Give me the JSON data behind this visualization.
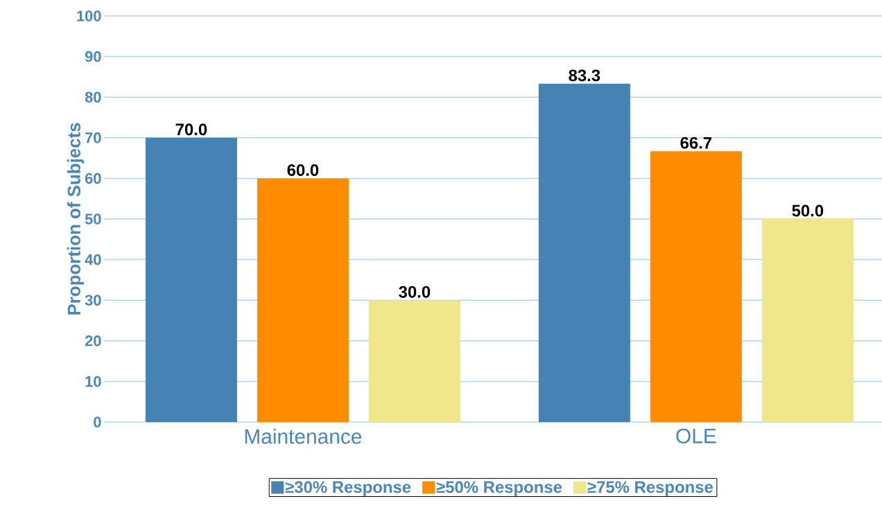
{
  "chart_data": {
    "type": "bar",
    "ylabel": "Proportion of Subjects",
    "categories": [
      "Maintenance",
      "OLE"
    ],
    "series": [
      {
        "name": "≥30% Response",
        "color": "#4682b4",
        "values": [
          70.0,
          83.3
        ],
        "value_labels": [
          "70.0",
          "83.3"
        ]
      },
      {
        "name": "≥50% Response",
        "color": "#ff8c00",
        "values": [
          60.0,
          66.7
        ],
        "value_labels": [
          "60.0",
          "66.7"
        ]
      },
      {
        "name": "≥75% Response",
        "color": "#f0e68c",
        "values": [
          30.0,
          50.0
        ],
        "value_labels": [
          "30.0",
          "50.0"
        ]
      }
    ],
    "ylim": [
      0,
      100
    ],
    "yticks": [
      0,
      10,
      20,
      30,
      40,
      50,
      60,
      70,
      80,
      90,
      100
    ],
    "grid": "y",
    "legend": "bottom"
  }
}
